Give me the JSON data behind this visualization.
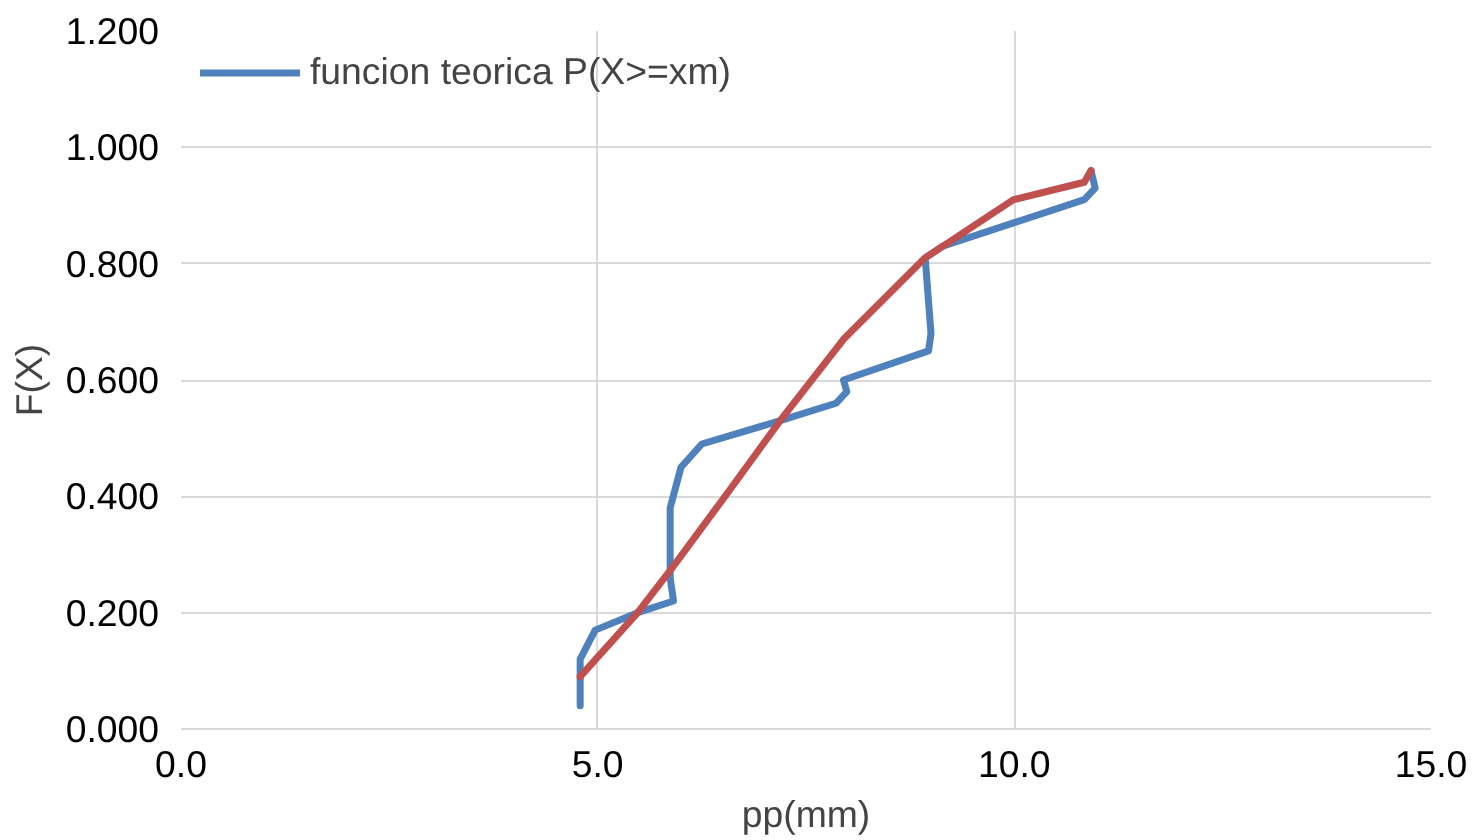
{
  "chart_data": {
    "type": "line",
    "xlabel": "pp(mm)",
    "ylabel": "F(X)",
    "xlim": [
      0,
      15
    ],
    "xticks": [
      {
        "value": 0,
        "label": "0.0"
      },
      {
        "value": 5,
        "label": "5.0"
      },
      {
        "value": 10,
        "label": "10.0"
      },
      {
        "value": 15,
        "label": "15.0"
      }
    ],
    "ylim": [
      0,
      1.2
    ],
    "yticks": [
      {
        "value": 0,
        "label": "0.000"
      },
      {
        "value": 0.2,
        "label": "0.200"
      },
      {
        "value": 0.4,
        "label": "0.400"
      },
      {
        "value": 0.6,
        "label": "0.600"
      },
      {
        "value": 0.8,
        "label": "0.800"
      },
      {
        "value": 1.0,
        "label": "1.000"
      },
      {
        "value": 1.2,
        "label": "1.200"
      }
    ],
    "grid": true,
    "legend": "top left",
    "marker": "none",
    "line_style": "solid",
    "series": [
      {
        "name": "funcion teorica P(X>=xm)",
        "color": "#4f81bd",
        "x": [
          4.79,
          4.79,
          4.97,
          5.48,
          5.91,
          5.87,
          5.87,
          6.0,
          6.25,
          7.19,
          7.86,
          7.99,
          7.95,
          8.97,
          9.0,
          8.93,
          9.14,
          9.99,
          10.84,
          10.97,
          10.92
        ],
        "values": [
          0.04,
          0.12,
          0.17,
          0.2,
          0.22,
          0.26,
          0.38,
          0.45,
          0.49,
          0.53,
          0.56,
          0.58,
          0.6,
          0.65,
          0.68,
          0.81,
          0.83,
          0.87,
          0.91,
          0.93,
          0.96
        ]
      },
      {
        "color": "#c0504d",
        "x": [
          4.79,
          5.48,
          5.91,
          6.58,
          7.19,
          7.95,
          8.93,
          9.99,
          10.84,
          10.92
        ],
        "values": [
          0.09,
          0.2,
          0.28,
          0.41,
          0.53,
          0.67,
          0.81,
          0.91,
          0.94,
          0.96
        ]
      }
    ]
  }
}
